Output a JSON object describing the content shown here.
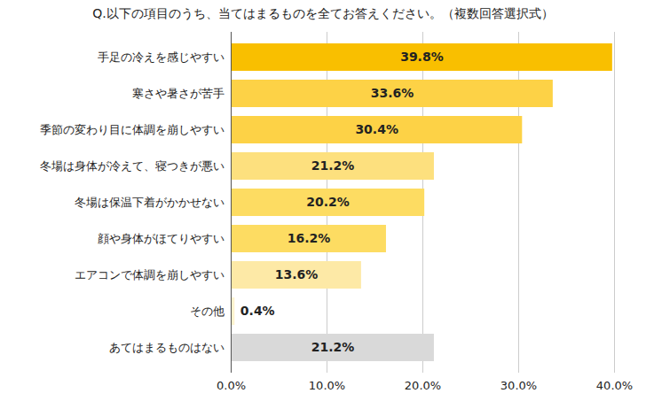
{
  "chart_data": {
    "type": "bar",
    "orientation": "horizontal",
    "title": "Q.以下の項目のうち、当てはまるものを全てお答えください。（複数回答選択式）",
    "categories": [
      "手足の冷えを感じやすい",
      "寒さや暑さが苦手",
      "季節の変わり目に体調を崩しやすい",
      "冬場は身体が冷えて、寝つきが悪い",
      "冬場は保温下着がかかせない",
      "顔や身体がほてりやすい",
      "エアコンで体調を崩しやすい",
      "その他",
      "あてはまるものはない"
    ],
    "values": [
      39.8,
      33.6,
      30.4,
      21.2,
      20.2,
      16.2,
      13.6,
      0.4,
      21.2
    ],
    "value_labels": [
      "39.8%",
      "33.6%",
      "30.4%",
      "21.2%",
      "20.2%",
      "16.2%",
      "13.6%",
      "0.4%",
      "21.2%"
    ],
    "colors": [
      "#f9bf00",
      "#fdd246",
      "#fdd246",
      "#fde07e",
      "#fddc62",
      "#fddc62",
      "#fde9a6",
      "#fef3cf",
      "#d9d9d9"
    ],
    "xlim": [
      0,
      40
    ],
    "xticks": [
      {
        "value": 0,
        "label": "0.0%"
      },
      {
        "value": 10,
        "label": "10.0%"
      },
      {
        "value": 20,
        "label": "20.0%"
      },
      {
        "value": 30,
        "label": "30.0%"
      },
      {
        "value": 40,
        "label": "40.0%"
      }
    ],
    "grid": true,
    "data_labels": true
  }
}
